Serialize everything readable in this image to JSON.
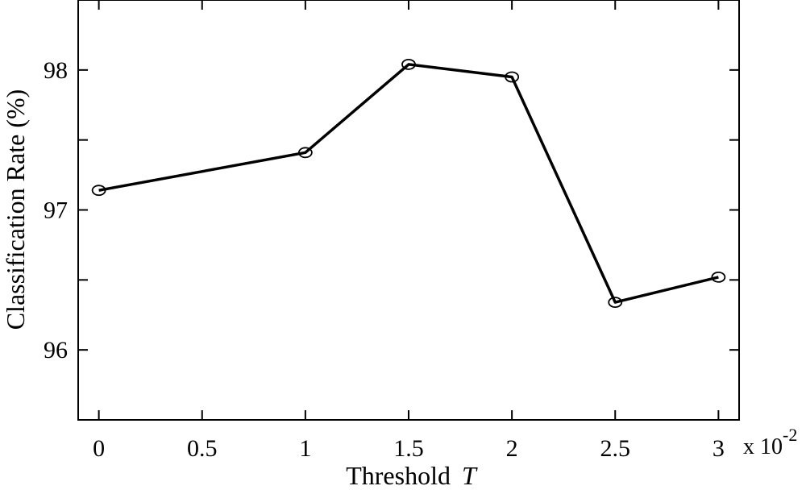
{
  "chart_data": {
    "type": "line",
    "title": "",
    "xlabel": "Threshold",
    "xlabel_symbol": "T",
    "ylabel": "Classification Rate (%)",
    "x_multiplier_label": "x 10",
    "x_multiplier_exponent": "-2",
    "x_display": [
      0,
      0.5,
      1,
      1.5,
      2,
      2.5,
      3
    ],
    "x_tick_labels": [
      "0",
      "0.5",
      "1",
      "1.5",
      "2",
      "2.5",
      "3"
    ],
    "y_ticks": [
      96,
      97,
      98
    ],
    "y_tick_labels": [
      "96",
      "97",
      "98"
    ],
    "xlim": [
      -0.1,
      3.1
    ],
    "ylim": [
      95.5,
      98.5
    ],
    "grid": false,
    "series": [
      {
        "color": "#000000",
        "marker": "circle-open",
        "x": [
          0,
          1,
          1.5,
          2,
          2.5,
          3
        ],
        "y": [
          97.14,
          97.41,
          98.04,
          97.95,
          96.34,
          96.52
        ]
      }
    ]
  }
}
